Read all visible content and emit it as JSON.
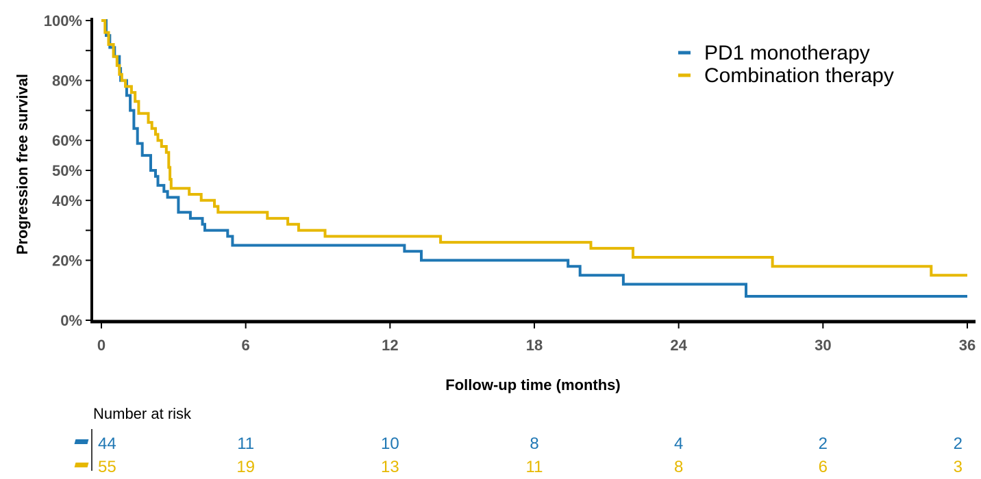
{
  "chart_data": {
    "type": "line",
    "step": true,
    "xlabel": "Follow-up time (months)",
    "ylabel": "Progression free survival",
    "xlim": [
      0,
      36
    ],
    "ylim": [
      0,
      100
    ],
    "x_ticks": [
      0,
      6,
      12,
      18,
      24,
      30,
      36
    ],
    "x_tick_labels": [
      "0",
      "6",
      "12",
      "18",
      "24",
      "30",
      "36"
    ],
    "y_ticks": [
      0,
      20,
      40,
      50,
      60,
      80,
      100
    ],
    "y_tick_labels": [
      "0%",
      "20%",
      "40%",
      "50%",
      "60%",
      "80%",
      "100%"
    ],
    "y_minor_ticks": [
      30,
      70,
      90
    ],
    "grid": false,
    "legend_position": "top-right",
    "series": [
      {
        "name": "PD1 monotherapy",
        "color": "#1f77b4",
        "points": [
          [
            0,
            100
          ],
          [
            0.2,
            100
          ],
          [
            0.2,
            95
          ],
          [
            0.35,
            95
          ],
          [
            0.35,
            91
          ],
          [
            0.55,
            91
          ],
          [
            0.55,
            88
          ],
          [
            0.75,
            88
          ],
          [
            0.75,
            84
          ],
          [
            0.8,
            84
          ],
          [
            0.8,
            80
          ],
          [
            1.05,
            80
          ],
          [
            1.05,
            75
          ],
          [
            1.2,
            75
          ],
          [
            1.2,
            70
          ],
          [
            1.35,
            70
          ],
          [
            1.35,
            64
          ],
          [
            1.5,
            64
          ],
          [
            1.5,
            59
          ],
          [
            1.7,
            59
          ],
          [
            1.7,
            55
          ],
          [
            2.05,
            55
          ],
          [
            2.05,
            50
          ],
          [
            2.25,
            50
          ],
          [
            2.25,
            48
          ],
          [
            2.35,
            48
          ],
          [
            2.35,
            45
          ],
          [
            2.6,
            45
          ],
          [
            2.6,
            43
          ],
          [
            2.75,
            43
          ],
          [
            2.75,
            41
          ],
          [
            3.2,
            41
          ],
          [
            3.2,
            36
          ],
          [
            3.7,
            36
          ],
          [
            3.7,
            34
          ],
          [
            4.2,
            34
          ],
          [
            4.2,
            32
          ],
          [
            4.3,
            32
          ],
          [
            4.3,
            30
          ],
          [
            5.25,
            30
          ],
          [
            5.25,
            28
          ],
          [
            5.45,
            28
          ],
          [
            5.45,
            25
          ],
          [
            12.6,
            25
          ],
          [
            12.6,
            23
          ],
          [
            13.3,
            23
          ],
          [
            13.3,
            20
          ],
          [
            19.4,
            20
          ],
          [
            19.4,
            18
          ],
          [
            19.9,
            18
          ],
          [
            19.9,
            15
          ],
          [
            21.7,
            15
          ],
          [
            21.7,
            12
          ],
          [
            26.8,
            12
          ],
          [
            26.8,
            8
          ],
          [
            36,
            8
          ]
        ]
      },
      {
        "name": "Combination therapy",
        "color": "#e6b800",
        "points": [
          [
            0,
            100
          ],
          [
            0.15,
            100
          ],
          [
            0.15,
            96
          ],
          [
            0.3,
            96
          ],
          [
            0.3,
            92
          ],
          [
            0.5,
            92
          ],
          [
            0.5,
            88
          ],
          [
            0.65,
            88
          ],
          [
            0.65,
            85
          ],
          [
            0.75,
            85
          ],
          [
            0.75,
            82
          ],
          [
            0.85,
            82
          ],
          [
            0.85,
            80
          ],
          [
            1.0,
            80
          ],
          [
            1.0,
            78
          ],
          [
            1.25,
            78
          ],
          [
            1.25,
            76
          ],
          [
            1.4,
            76
          ],
          [
            1.4,
            73
          ],
          [
            1.55,
            73
          ],
          [
            1.55,
            69
          ],
          [
            1.95,
            69
          ],
          [
            1.95,
            66
          ],
          [
            2.1,
            66
          ],
          [
            2.1,
            64
          ],
          [
            2.25,
            64
          ],
          [
            2.25,
            62
          ],
          [
            2.35,
            62
          ],
          [
            2.35,
            60
          ],
          [
            2.5,
            60
          ],
          [
            2.5,
            58
          ],
          [
            2.7,
            58
          ],
          [
            2.7,
            56
          ],
          [
            2.8,
            56
          ],
          [
            2.8,
            51
          ],
          [
            2.85,
            51
          ],
          [
            2.85,
            47
          ],
          [
            2.9,
            47
          ],
          [
            2.9,
            44
          ],
          [
            3.65,
            44
          ],
          [
            3.65,
            42
          ],
          [
            4.15,
            42
          ],
          [
            4.15,
            40
          ],
          [
            4.7,
            40
          ],
          [
            4.7,
            38
          ],
          [
            4.85,
            38
          ],
          [
            4.85,
            36
          ],
          [
            6.9,
            36
          ],
          [
            6.9,
            34
          ],
          [
            7.75,
            34
          ],
          [
            7.75,
            32
          ],
          [
            8.2,
            32
          ],
          [
            8.2,
            30
          ],
          [
            9.3,
            30
          ],
          [
            9.3,
            28
          ],
          [
            14.1,
            28
          ],
          [
            14.1,
            26
          ],
          [
            20.35,
            26
          ],
          [
            20.35,
            24
          ],
          [
            22.1,
            24
          ],
          [
            22.1,
            21
          ],
          [
            27.9,
            21
          ],
          [
            27.9,
            18
          ],
          [
            34.5,
            18
          ],
          [
            34.5,
            15
          ],
          [
            36,
            15
          ]
        ]
      }
    ]
  },
  "risk_table": {
    "title": "Number at risk",
    "times": [
      0,
      6,
      12,
      18,
      24,
      30,
      36
    ],
    "rows": [
      {
        "name": "PD1 monotherapy",
        "color": "#1f77b4",
        "values": [
          "44",
          "11",
          "10",
          "8",
          "4",
          "2",
          "2"
        ]
      },
      {
        "name": "Combination therapy",
        "color": "#e6b800",
        "values": [
          "55",
          "19",
          "13",
          "11",
          "8",
          "6",
          "3"
        ]
      }
    ]
  }
}
